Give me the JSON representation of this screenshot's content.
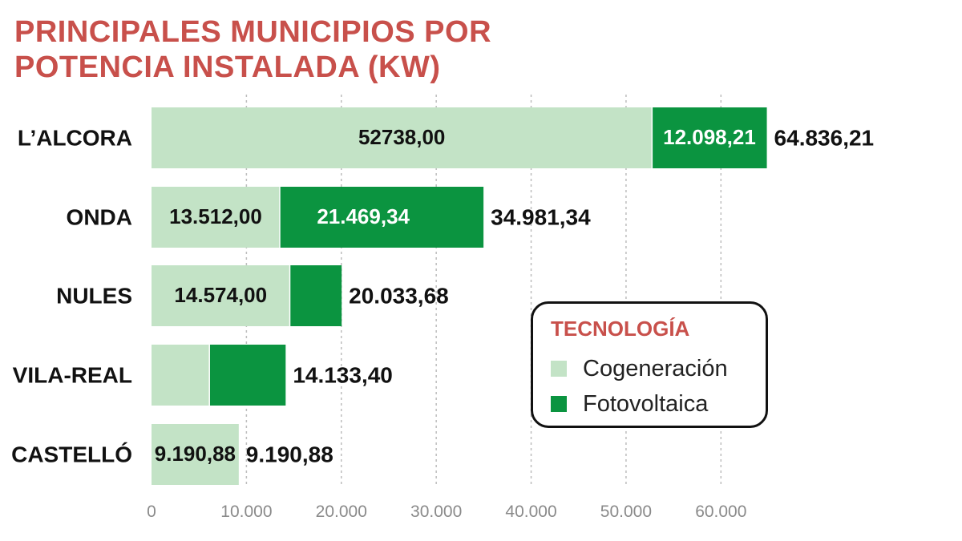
{
  "chart_data": {
    "type": "bar",
    "orientation": "horizontal",
    "stacked": true,
    "title": "PRINCIPALES MUNICIPIOS POR POTENCIA INSTALADA (KW)",
    "categories": [
      "L’ALCORA",
      "ONDA",
      "NULES",
      "VILA-REAL",
      "CASTELLÓ"
    ],
    "series": [
      {
        "name": "Cogeneración",
        "color": "#c3e3c6",
        "values": [
          52738.0,
          13512.0,
          14574.0,
          6100.0,
          9190.88
        ],
        "labels": [
          "52738,00",
          "13.512,00",
          "14.574,00",
          "",
          "9.190,88"
        ]
      },
      {
        "name": "Fotovoltaica",
        "color": "#0b9440",
        "values": [
          12098.21,
          21469.34,
          5459.68,
          8033.4,
          0
        ],
        "labels": [
          "12.098,21",
          "21.469,34",
          "",
          "",
          ""
        ]
      }
    ],
    "totals": [
      "64.836,21",
      "34.981,34",
      "20.033,68",
      "14.133,40",
      "9.190,88"
    ],
    "total_values": [
      64836.21,
      34981.34,
      20033.68,
      14133.4,
      9190.88
    ],
    "xlim": [
      0,
      65000
    ],
    "xticks": [
      0,
      10000,
      20000,
      30000,
      40000,
      50000,
      60000
    ],
    "xtick_labels": [
      "0",
      "10.000",
      "20.000",
      "30.000",
      "40.000",
      "50.000",
      "60.000"
    ],
    "grid": "vertical dotted",
    "legend_title": "TECNOLOGÍA",
    "legend_position": "right-middle"
  }
}
